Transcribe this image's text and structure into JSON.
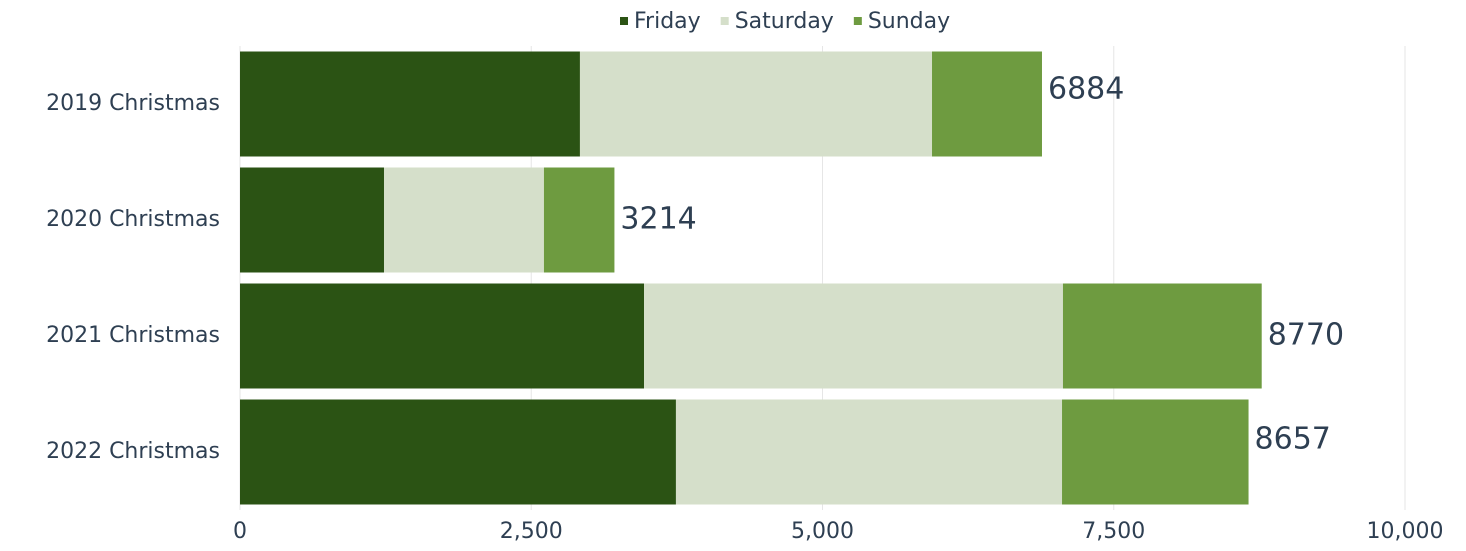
{
  "chart_data": {
    "type": "stacked-barh",
    "categories": [
      "2019 Christmas",
      "2020 Christmas",
      "2021 Christmas",
      "2022 Christmas"
    ],
    "series": [
      {
        "name": "Friday",
        "color": "#2b5314",
        "values": [
          2918,
          1236,
          3468,
          3742
        ]
      },
      {
        "name": "Saturday",
        "color": "#d5dfca",
        "values": [
          3022,
          1373,
          3596,
          3314
        ]
      },
      {
        "name": "Sunday",
        "color": "#6e9b40",
        "values": [
          944,
          605,
          1706,
          1601
        ]
      }
    ],
    "totals": [
      6884,
      3214,
      8770,
      8657
    ],
    "xlim": [
      0,
      10000
    ],
    "xticks": [
      0,
      {
        "value": 2500,
        "label": "2,500"
      },
      {
        "value": 5000,
        "label": "5,000"
      },
      {
        "value": 7500,
        "label": "7,500"
      },
      {
        "value": 10000,
        "label": "10,000"
      }
    ],
    "grid": true,
    "legend": "top"
  }
}
